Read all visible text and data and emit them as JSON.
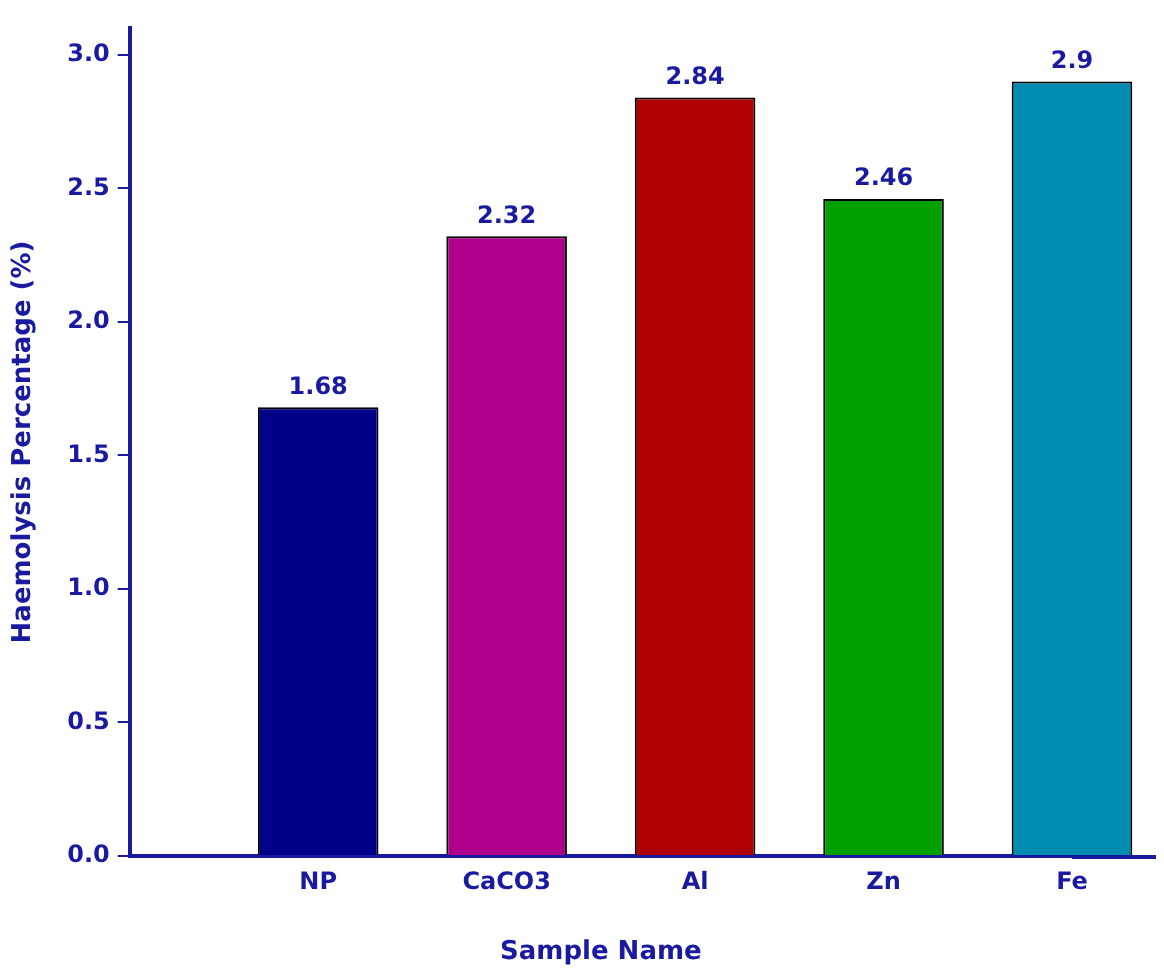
{
  "chart_data": {
    "type": "bar",
    "xlabel": "Sample Name",
    "ylabel": "Haemolysis Percentage (%)",
    "categories": [
      null,
      "NP",
      "CaCO3",
      "Al",
      "Zn",
      "Fe"
    ],
    "values": [
      null,
      1.68,
      2.32,
      2.84,
      2.46,
      2.9
    ],
    "colors": [
      "#000000",
      "#000088",
      "#b0008b",
      "#b00000",
      "#00a000",
      "#008cb0"
    ],
    "ylim": [
      0,
      3.1
    ],
    "yticks": [
      {
        "value": 0,
        "label": "0.0"
      },
      {
        "value": 0.5,
        "label": "0.5"
      },
      {
        "value": 1,
        "label": "1.0"
      },
      {
        "value": 1.5,
        "label": "1.5"
      },
      {
        "value": 2,
        "label": "2.0"
      },
      {
        "value": 2.5,
        "label": "2.5"
      },
      {
        "value": 3,
        "label": "3.0"
      }
    ],
    "data_labels": true,
    "grid": false,
    "legend": false
  }
}
